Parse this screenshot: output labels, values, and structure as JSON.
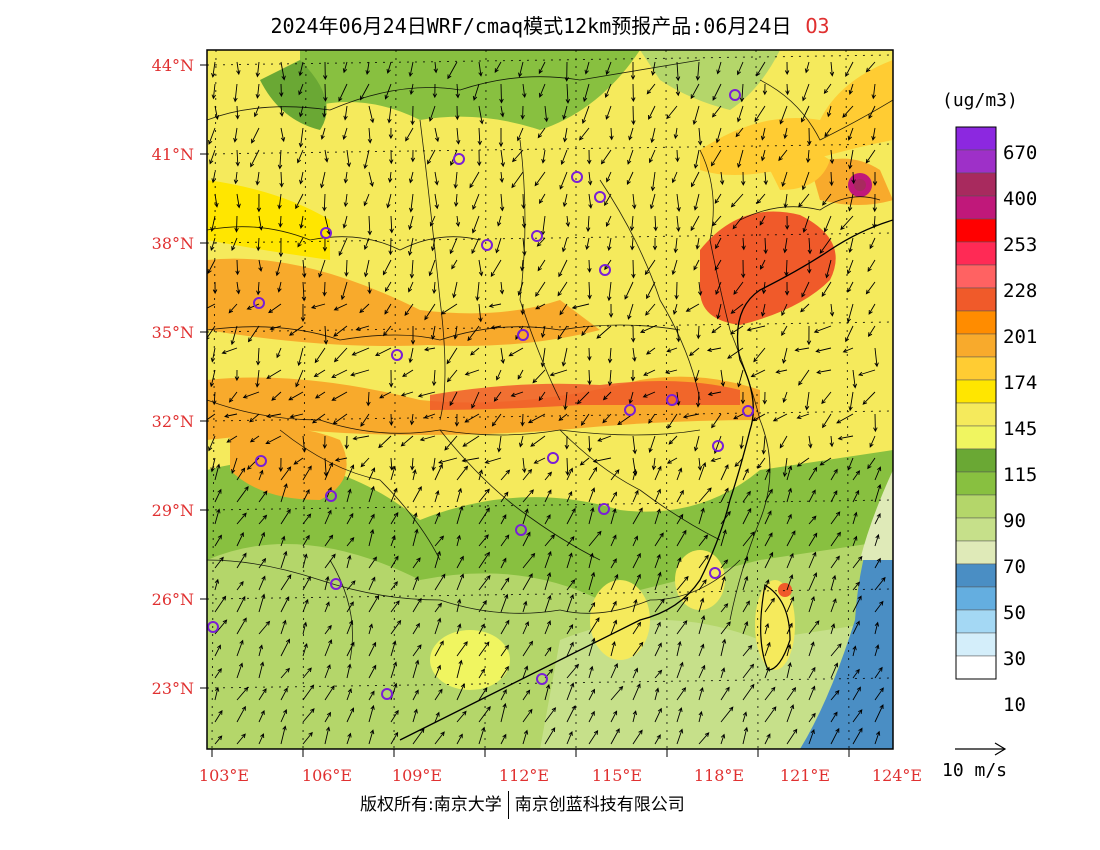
{
  "title": {
    "main": "2024年06月24日WRF/cmaq模式12km预报产品:06月24日",
    "species": "O3"
  },
  "map": {
    "lat_labels": [
      "44°N",
      "41°N",
      "38°N",
      "35°N",
      "32°N",
      "29°N",
      "26°N",
      "23°N"
    ],
    "lon_labels": [
      "103°E",
      "106°E",
      "109°E",
      "112°E",
      "115°E",
      "118°E",
      "121°E",
      "124°E"
    ]
  },
  "legend": {
    "unit": "(ug/m3)",
    "labels": [
      "670",
      "400",
      "253",
      "228",
      "201",
      "174",
      "145",
      "115",
      "90",
      "70",
      "50",
      "30",
      "10"
    ],
    "colors": [
      "#8c28e0",
      "#9e30c8",
      "#a82a5e",
      "#c0187a",
      "#ff0000",
      "#ff2a55",
      "#ff6262",
      "#f05a2a",
      "#ff8c00",
      "#f8aa2c",
      "#ffcc33",
      "#ffe600",
      "#f5ea5c",
      "#f0f560",
      "#6aa834",
      "#88c040",
      "#b4d66a",
      "#c6e08a",
      "#dfeab8",
      "#4a8ec4",
      "#64aee0",
      "#a4d8f4",
      "#d4eefa",
      "#ffffff"
    ]
  },
  "vector": {
    "label": "10 m/s"
  },
  "footer": {
    "left": "版权所有:南京大学",
    "right": "南京创蓝科技有限公司"
  }
}
